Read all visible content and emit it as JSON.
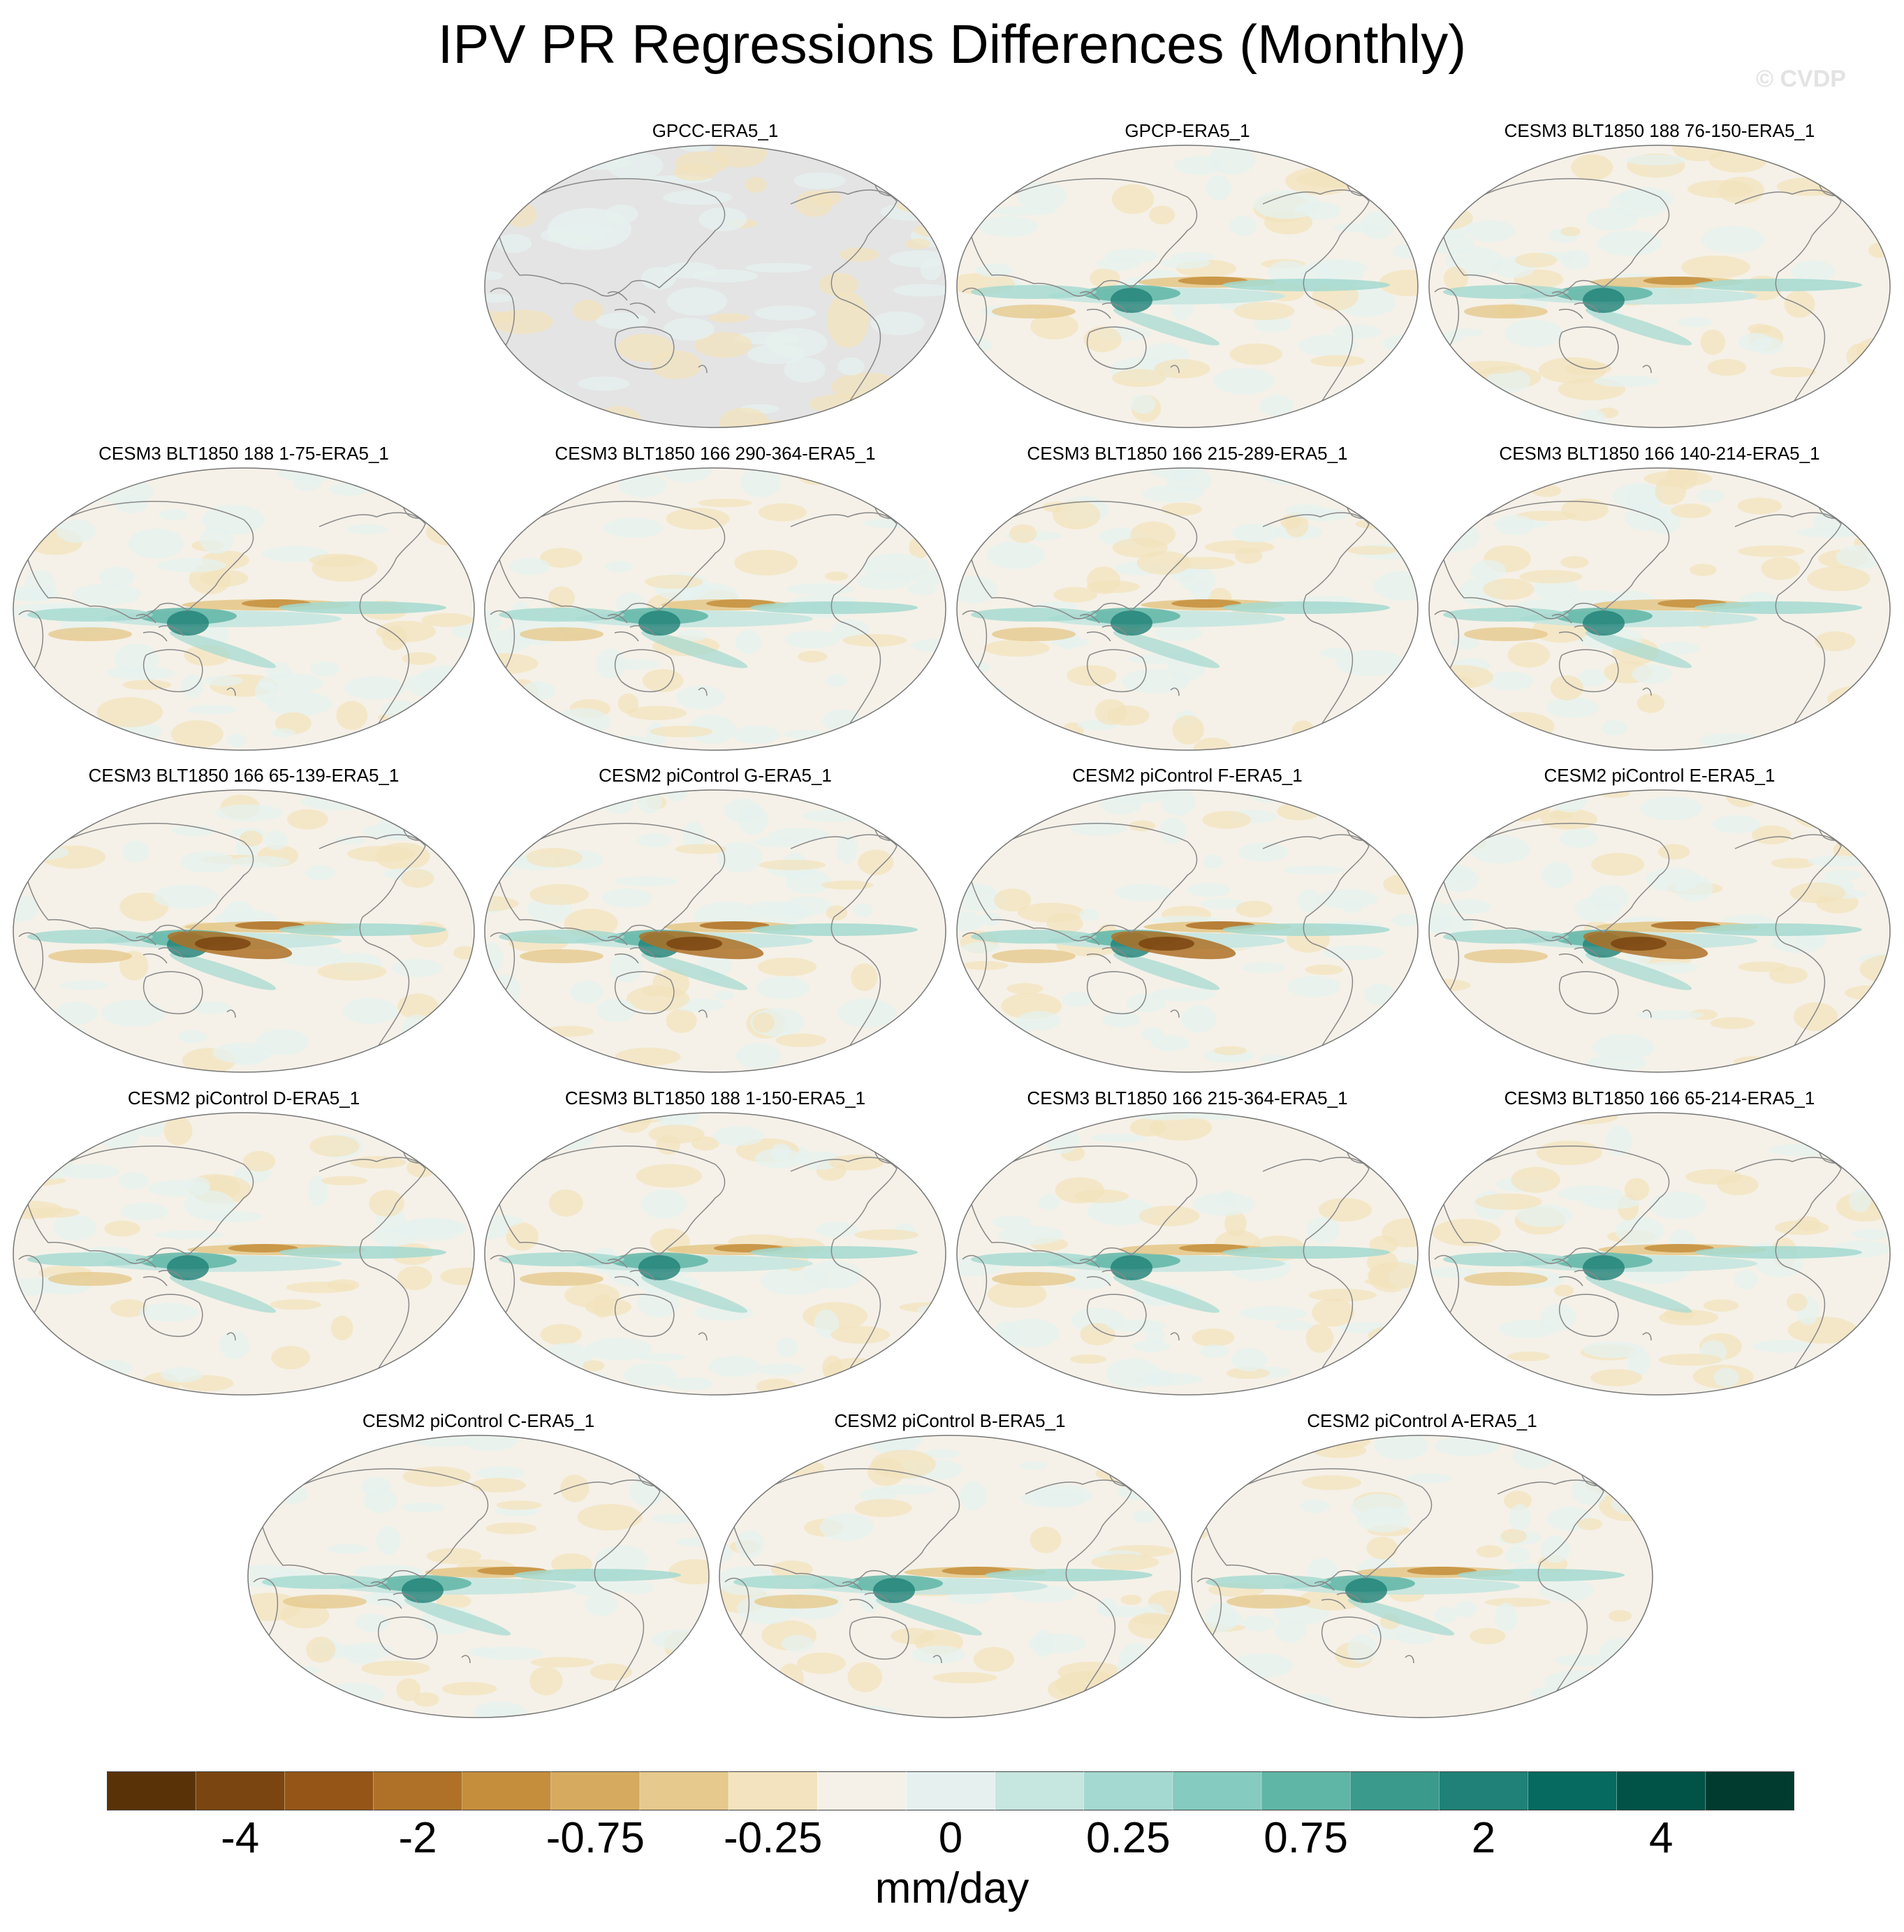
{
  "title": "IPV PR Regressions Differences (Monthly)",
  "watermark": "© CVDP",
  "panels": [
    {
      "label": "GPCC-ERA5_1",
      "ocean_missing": true
    },
    {
      "label": "GPCP-ERA5_1"
    },
    {
      "label": "CESM3 BLT1850 188 76-150-ERA5_1"
    },
    {
      "label": "CESM3 BLT1850 188 1-75-ERA5_1"
    },
    {
      "label": "CESM3 BLT1850 166 290-364-ERA5_1"
    },
    {
      "label": "CESM3 BLT1850 166 215-289-ERA5_1"
    },
    {
      "label": "CESM3 BLT1850 166 140-214-ERA5_1"
    },
    {
      "label": "CESM3 BLT1850 166 65-139-ERA5_1"
    },
    {
      "label": "CESM2 piControl G-ERA5_1"
    },
    {
      "label": "CESM2 piControl F-ERA5_1"
    },
    {
      "label": "CESM2 piControl E-ERA5_1"
    },
    {
      "label": "CESM2 piControl D-ERA5_1"
    },
    {
      "label": "CESM3 BLT1850 188 1-150-ERA5_1"
    },
    {
      "label": "CESM3 BLT1850 166 215-364-ERA5_1"
    },
    {
      "label": "CESM3 BLT1850 166 65-214-ERA5_1"
    },
    {
      "label": "CESM2 piControl C-ERA5_1"
    },
    {
      "label": "CESM2 piControl B-ERA5_1"
    },
    {
      "label": "CESM2 piControl A-ERA5_1"
    }
  ],
  "colorbar": {
    "colors": [
      "#5a3208",
      "#7a4510",
      "#955516",
      "#ae7127",
      "#c48e3c",
      "#d6ab5f",
      "#e6c98c",
      "#f3e3be",
      "#f5f1e8",
      "#e6f1ef",
      "#c6e6e0",
      "#a3d9d0",
      "#85cbbf",
      "#5fb5a6",
      "#3a9a8b",
      "#1f8177",
      "#066a60",
      "#025347",
      "#013b30"
    ],
    "tick_labels": [
      "-4",
      "-2",
      "-0.75",
      "-0.25",
      "0",
      "0.25",
      "0.75",
      "2",
      "4"
    ],
    "units": "mm/day"
  }
}
